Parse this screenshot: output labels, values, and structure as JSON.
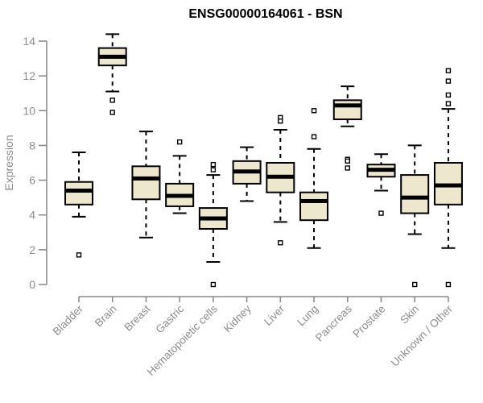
{
  "chart_data": {
    "type": "boxplot",
    "title": "ENSG00000164061 - BSN",
    "ylabel": "Expression",
    "xlabel": "",
    "ylim": [
      0,
      14
    ],
    "yticks": [
      0,
      2,
      4,
      6,
      8,
      10,
      12,
      14
    ],
    "grid": false,
    "legend": "none",
    "categories": [
      "Bladder",
      "Brain",
      "Breast",
      "Gastric",
      "Hematopoietic cells",
      "Kidney",
      "Liver",
      "Lung",
      "Pancreas",
      "Prostate",
      "Skin",
      "Unknown / Other"
    ],
    "series": [
      {
        "name": "Bladder",
        "whisker_low": 3.9,
        "q1": 4.6,
        "median": 5.4,
        "q3": 5.9,
        "whisker_high": 7.6,
        "outliers": [
          1.7
        ]
      },
      {
        "name": "Brain",
        "whisker_low": 11.1,
        "q1": 12.6,
        "median": 13.1,
        "q3": 13.6,
        "whisker_high": 14.4,
        "outliers": [
          10.6,
          9.9
        ]
      },
      {
        "name": "Breast",
        "whisker_low": 2.7,
        "q1": 4.9,
        "median": 6.1,
        "q3": 6.8,
        "whisker_high": 8.8,
        "outliers": []
      },
      {
        "name": "Gastric",
        "whisker_low": 4.1,
        "q1": 4.5,
        "median": 5.1,
        "q3": 5.8,
        "whisker_high": 7.4,
        "outliers": [
          8.2
        ]
      },
      {
        "name": "Hematopoietic cells",
        "whisker_low": 1.3,
        "q1": 3.2,
        "median": 3.8,
        "q3": 4.4,
        "whisker_high": 6.3,
        "outliers": [
          6.9,
          6.6,
          0
        ]
      },
      {
        "name": "Kidney",
        "whisker_low": 4.8,
        "q1": 5.8,
        "median": 6.5,
        "q3": 7.1,
        "whisker_high": 7.9,
        "outliers": []
      },
      {
        "name": "Liver",
        "whisker_low": 3.6,
        "q1": 5.3,
        "median": 6.2,
        "q3": 7.0,
        "whisker_high": 8.9,
        "outliers": [
          9.6,
          9.4,
          2.4
        ]
      },
      {
        "name": "Lung",
        "whisker_low": 2.1,
        "q1": 3.7,
        "median": 4.8,
        "q3": 5.3,
        "whisker_high": 7.8,
        "outliers": [
          10.0,
          8.5
        ]
      },
      {
        "name": "Pancreas",
        "whisker_low": 9.1,
        "q1": 9.5,
        "median": 10.3,
        "q3": 10.6,
        "whisker_high": 11.4,
        "outliers": [
          7.2,
          7.1,
          6.7
        ]
      },
      {
        "name": "Prostate",
        "whisker_low": 5.4,
        "q1": 6.2,
        "median": 6.6,
        "q3": 6.9,
        "whisker_high": 7.5,
        "outliers": [
          4.1
        ]
      },
      {
        "name": "Skin",
        "whisker_low": 2.9,
        "q1": 4.1,
        "median": 5.0,
        "q3": 6.3,
        "whisker_high": 8.0,
        "outliers": [
          0
        ]
      },
      {
        "name": "Unknown / Other",
        "whisker_low": 2.1,
        "q1": 4.6,
        "median": 5.7,
        "q3": 7.0,
        "whisker_high": 10.1,
        "outliers": [
          12.3,
          11.7,
          10.9,
          10.4,
          0
        ]
      }
    ],
    "colors": {
      "background": "#ffffff",
      "box_fill": "#ede8cd",
      "box_border": "#000000",
      "median": "#000000",
      "whisker": "#000000",
      "outlier_border": "#000000",
      "outlier_fill": "#ffffff",
      "axis": "#8c8c8c",
      "tick_label": "#8c8c8c",
      "axis_label": "#8c8c8c",
      "title": "#000000"
    }
  }
}
